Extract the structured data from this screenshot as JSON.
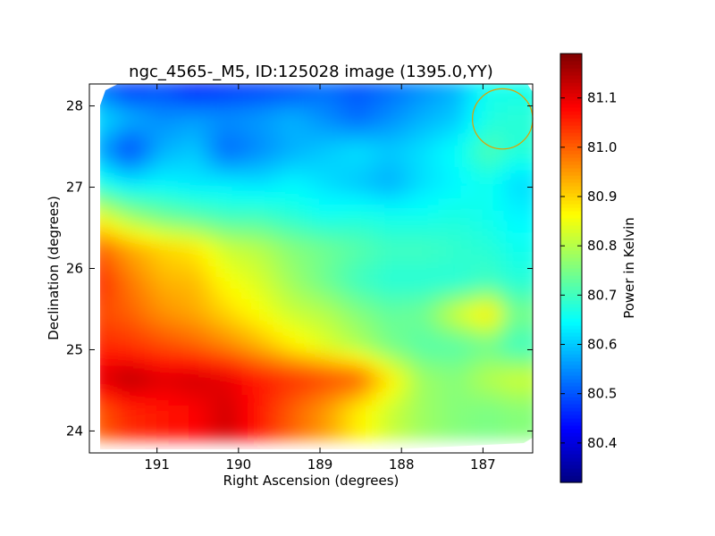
{
  "chart_data": {
    "type": "heatmap",
    "title": "ngc_4565-_M5, ID:125028 image (1395.0,YY)",
    "xlabel": "Right Ascension (degrees)",
    "ylabel": "Declination (degrees)",
    "xlim": [
      191.83,
      186.39
    ],
    "ylim": [
      23.73,
      28.27
    ],
    "xticks": [
      191,
      190,
      189,
      188,
      187
    ],
    "yticks": [
      24,
      25,
      26,
      27,
      28
    ],
    "x_inverted": true,
    "grid": false,
    "colorscale": "jet",
    "colorbar": {
      "label": "Power in Kelvin",
      "min": 80.32,
      "max": 81.19,
      "ticks": [
        "80.4",
        "80.5",
        "80.6",
        "80.7",
        "80.8",
        "80.9",
        "81.0",
        "81.1"
      ]
    },
    "grid_ra": [
      191.6,
      191.2,
      190.8,
      190.4,
      190.0,
      189.6,
      189.2,
      188.8,
      188.4,
      188.0,
      187.6,
      187.2,
      186.8,
      186.5
    ],
    "grid_dec": [
      28.1,
      27.7,
      27.3,
      26.9,
      26.5,
      26.1,
      25.7,
      25.3,
      24.9,
      24.5,
      24.1
    ],
    "values": [
      [
        80.53,
        80.47,
        80.49,
        80.45,
        80.47,
        80.48,
        80.49,
        80.52,
        80.5,
        80.52,
        80.55,
        80.58,
        80.66,
        80.66
      ],
      [
        80.62,
        80.58,
        80.55,
        80.56,
        80.55,
        80.56,
        80.58,
        80.55,
        80.52,
        80.55,
        80.58,
        80.6,
        80.67,
        80.68
      ],
      [
        80.58,
        80.49,
        80.58,
        80.6,
        80.52,
        80.55,
        80.58,
        80.6,
        80.62,
        80.6,
        80.62,
        80.65,
        80.71,
        80.68
      ],
      [
        80.67,
        80.63,
        80.64,
        80.63,
        80.63,
        80.62,
        80.64,
        80.62,
        80.6,
        80.58,
        80.62,
        80.64,
        80.66,
        80.62
      ],
      [
        80.85,
        80.78,
        80.74,
        80.72,
        80.7,
        80.7,
        80.68,
        80.66,
        80.67,
        80.66,
        80.66,
        80.67,
        80.66,
        80.64
      ],
      [
        81.0,
        80.94,
        80.9,
        80.88,
        80.82,
        80.8,
        80.76,
        80.74,
        80.72,
        80.7,
        80.7,
        80.69,
        80.68,
        80.66
      ],
      [
        81.05,
        80.98,
        80.93,
        80.92,
        80.86,
        80.83,
        80.78,
        80.74,
        80.7,
        80.68,
        80.68,
        80.68,
        80.7,
        80.68
      ],
      [
        81.02,
        81.0,
        80.96,
        80.94,
        80.9,
        80.86,
        80.82,
        80.8,
        80.76,
        80.73,
        80.74,
        80.82,
        80.88,
        80.75
      ],
      [
        81.05,
        81.04,
        81.02,
        81.0,
        80.97,
        80.93,
        80.88,
        80.84,
        80.8,
        80.75,
        80.72,
        80.72,
        80.74,
        80.7
      ],
      [
        81.1,
        81.14,
        81.11,
        81.12,
        81.1,
        81.06,
        81.04,
        81.02,
        81.0,
        80.88,
        80.78,
        80.76,
        80.8,
        80.82
      ],
      [
        81.0,
        81.05,
        81.06,
        81.08,
        81.12,
        81.06,
        81.0,
        80.95,
        80.88,
        80.82,
        80.78,
        80.76,
        80.75,
        80.76
      ]
    ],
    "annotations": [
      {
        "type": "circle",
        "ra": 186.76,
        "dec": 27.84,
        "radius_deg": 0.37,
        "color": "#e0a000"
      }
    ]
  },
  "colors": {
    "frame": "#000000",
    "background": "#ffffff",
    "circle": "#e0a000"
  }
}
